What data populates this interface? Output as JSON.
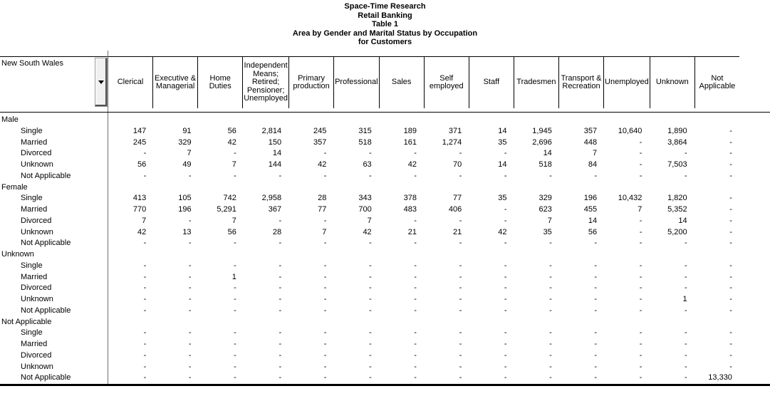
{
  "title_lines": [
    "Space-Time Research",
    "Retail Banking",
    "Table 1",
    "Area by Gender and Marital Status by Occupation",
    "for Customers"
  ],
  "stub": {
    "label": "New South Wales"
  },
  "columns": [
    "Clerical",
    "Executive & Managerial",
    "Home Duties",
    "Independent Means; Retired; Pensioner; Unemployed",
    "Primary production",
    "Professional",
    "Sales",
    "Self employed",
    "Staff",
    "Tradesmen",
    "Transport & Recreation",
    "Unemployed",
    "Unknown",
    "Not Applicable"
  ],
  "groups": [
    {
      "label": "Male",
      "rows": [
        {
          "label": "Single",
          "values": [
            "147",
            "91",
            "56",
            "2,814",
            "245",
            "315",
            "189",
            "371",
            "14",
            "1,945",
            "357",
            "10,640",
            "1,890",
            "-"
          ]
        },
        {
          "label": "Married",
          "values": [
            "245",
            "329",
            "42",
            "150",
            "357",
            "518",
            "161",
            "1,274",
            "35",
            "2,696",
            "448",
            "-",
            "3,864",
            "-"
          ]
        },
        {
          "label": "Divorced",
          "values": [
            "-",
            "7",
            "-",
            "14",
            "-",
            "-",
            "-",
            "-",
            "-",
            "14",
            "7",
            "-",
            "-",
            "-"
          ]
        },
        {
          "label": "Unknown",
          "values": [
            "56",
            "49",
            "7",
            "144",
            "42",
            "63",
            "42",
            "70",
            "14",
            "518",
            "84",
            "-",
            "7,503",
            "-"
          ]
        },
        {
          "label": "Not Applicable",
          "values": [
            "-",
            "-",
            "-",
            "-",
            "-",
            "-",
            "-",
            "-",
            "-",
            "-",
            "-",
            "-",
            "-",
            "-"
          ]
        }
      ]
    },
    {
      "label": "Female",
      "rows": [
        {
          "label": "Single",
          "values": [
            "413",
            "105",
            "742",
            "2,958",
            "28",
            "343",
            "378",
            "77",
            "35",
            "329",
            "196",
            "10,432",
            "1,820",
            "-"
          ]
        },
        {
          "label": "Married",
          "values": [
            "770",
            "196",
            "5,291",
            "367",
            "77",
            "700",
            "483",
            "406",
            "-",
            "623",
            "455",
            "7",
            "5,352",
            "-"
          ]
        },
        {
          "label": "Divorced",
          "values": [
            "7",
            "-",
            "7",
            "-",
            "-",
            "7",
            "-",
            "-",
            "-",
            "7",
            "14",
            "-",
            "14",
            "-"
          ]
        },
        {
          "label": "Unknown",
          "values": [
            "42",
            "13",
            "56",
            "28",
            "7",
            "42",
            "21",
            "21",
            "42",
            "35",
            "56",
            "-",
            "5,200",
            "-"
          ]
        },
        {
          "label": "Not Applicable",
          "values": [
            "-",
            "-",
            "-",
            "-",
            "-",
            "-",
            "-",
            "-",
            "-",
            "-",
            "-",
            "-",
            "-",
            "-"
          ]
        }
      ]
    },
    {
      "label": "Unknown",
      "rows": [
        {
          "label": "Single",
          "values": [
            "-",
            "-",
            "-",
            "-",
            "-",
            "-",
            "-",
            "-",
            "-",
            "-",
            "-",
            "-",
            "-",
            "-"
          ]
        },
        {
          "label": "Married",
          "values": [
            "-",
            "-",
            "1",
            "-",
            "-",
            "-",
            "-",
            "-",
            "-",
            "-",
            "-",
            "-",
            "-",
            "-"
          ]
        },
        {
          "label": "Divorced",
          "values": [
            "-",
            "-",
            "-",
            "-",
            "-",
            "-",
            "-",
            "-",
            "-",
            "-",
            "-",
            "-",
            "-",
            "-"
          ]
        },
        {
          "label": "Unknown",
          "values": [
            "-",
            "-",
            "-",
            "-",
            "-",
            "-",
            "-",
            "-",
            "-",
            "-",
            "-",
            "-",
            "1",
            "-"
          ]
        },
        {
          "label": "Not Applicable",
          "values": [
            "-",
            "-",
            "-",
            "-",
            "-",
            "-",
            "-",
            "-",
            "-",
            "-",
            "-",
            "-",
            "-",
            "-"
          ]
        }
      ]
    },
    {
      "label": "Not Applicable",
      "rows": [
        {
          "label": "Single",
          "values": [
            "-",
            "-",
            "-",
            "-",
            "-",
            "-",
            "-",
            "-",
            "-",
            "-",
            "-",
            "-",
            "-",
            "-"
          ]
        },
        {
          "label": "Married",
          "values": [
            "-",
            "-",
            "-",
            "-",
            "-",
            "-",
            "-",
            "-",
            "-",
            "-",
            "-",
            "-",
            "-",
            "-"
          ]
        },
        {
          "label": "Divorced",
          "values": [
            "-",
            "-",
            "-",
            "-",
            "-",
            "-",
            "-",
            "-",
            "-",
            "-",
            "-",
            "-",
            "-",
            "-"
          ]
        },
        {
          "label": "Unknown",
          "values": [
            "-",
            "-",
            "-",
            "-",
            "-",
            "-",
            "-",
            "-",
            "-",
            "-",
            "-",
            "-",
            "-",
            "-"
          ]
        },
        {
          "label": "Not Applicable",
          "values": [
            "-",
            "-",
            "-",
            "-",
            "-",
            "-",
            "-",
            "-",
            "-",
            "-",
            "-",
            "-",
            "-",
            "13,330"
          ]
        }
      ]
    }
  ],
  "colors": {
    "rule": "#000000",
    "stub_rule": "#6e6e6e",
    "background": "#ffffff",
    "text": "#000000"
  }
}
